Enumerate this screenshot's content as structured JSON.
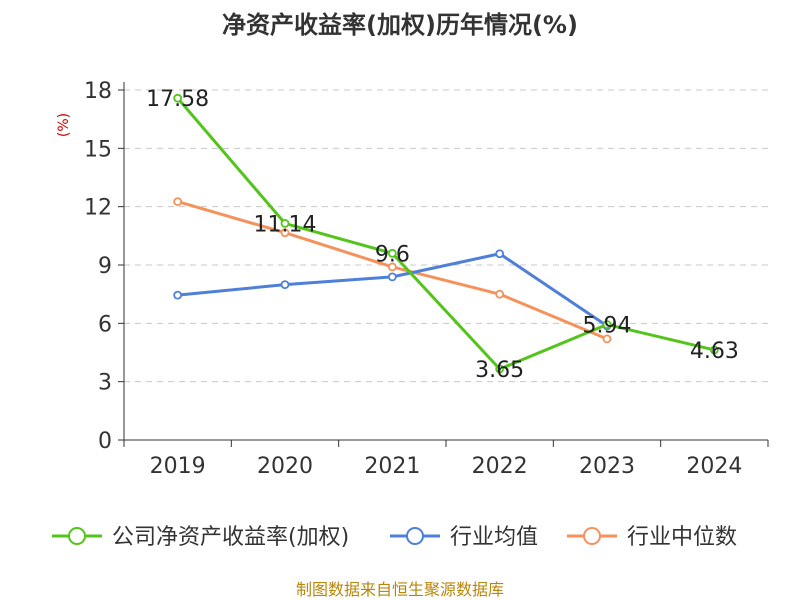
{
  "chart_data": {
    "type": "line",
    "title": "净资产收益率(加权)历年情况(%)",
    "ylabel": "(%)",
    "categories": [
      "2019",
      "2020",
      "2021",
      "2022",
      "2023",
      "2024"
    ],
    "ylim": [
      0,
      18
    ],
    "yticks": [
      0,
      3,
      6,
      9,
      12,
      15,
      18
    ],
    "grid": true,
    "legend": "bottom",
    "series": [
      {
        "name": "公司净资产收益率(加权)",
        "color": "#52c41a",
        "values": [
          17.58,
          11.14,
          9.6,
          3.65,
          5.94,
          4.63
        ],
        "labels": [
          "17.58",
          "11.14",
          "9.6",
          "3.65",
          "5.94",
          "4.63"
        ]
      },
      {
        "name": "行业均值",
        "color": "#4e7fd9",
        "values": [
          7.45,
          7.99,
          8.39,
          9.58,
          5.87,
          null
        ]
      },
      {
        "name": "行业中位数",
        "color": "#f5925c",
        "values": [
          12.26,
          10.66,
          8.9,
          7.5,
          5.2,
          null
        ]
      }
    ],
    "source": "制图数据来自恒生聚源数据库"
  }
}
